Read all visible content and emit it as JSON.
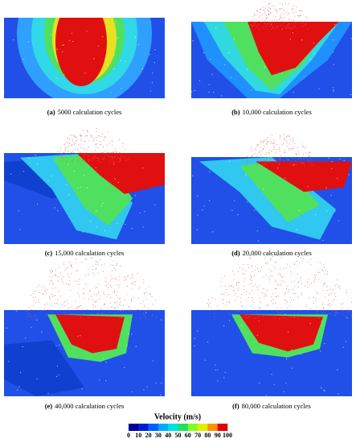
{
  "panels": [
    {
      "letter": "(a)",
      "caption": "5000 calculation cycles"
    },
    {
      "letter": "(b)",
      "caption": "10,000 calculation cycles"
    },
    {
      "letter": "(c)",
      "caption": "15,000 calculation cycles"
    },
    {
      "letter": "(d)",
      "caption": "20,000 calculation cycles"
    },
    {
      "letter": "(e)",
      "caption": "40,000 calculation cycles"
    },
    {
      "letter": "(f)",
      "caption": "80,000 calculation cycles"
    }
  ],
  "colorbar": {
    "title": "Velocity (m/s)",
    "ticks": [
      0,
      10,
      20,
      30,
      40,
      50,
      60,
      70,
      80,
      90,
      100
    ],
    "colors": [
      "#00009a",
      "#0020d0",
      "#0060ff",
      "#00a8ff",
      "#00e0e0",
      "#20e060",
      "#80ff20",
      "#e0f000",
      "#ff9000",
      "#e00000"
    ]
  }
}
